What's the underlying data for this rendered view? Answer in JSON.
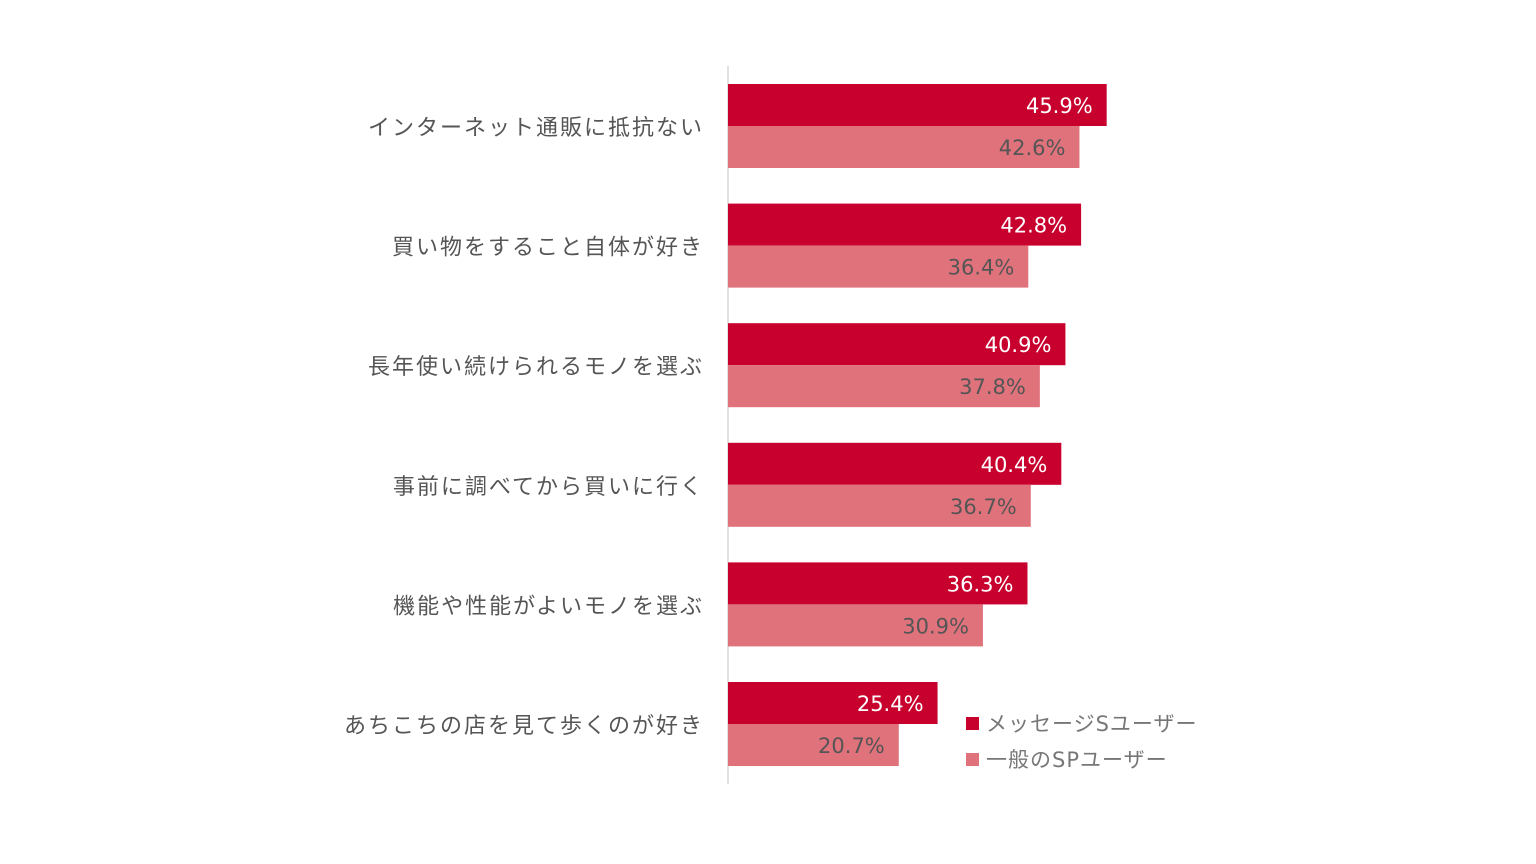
{
  "chart_data": {
    "type": "bar",
    "orientation": "horizontal",
    "categories": [
      "インターネット通販に抵抗ない",
      "買い物をすること自体が好き",
      "長年使い続けられるモノを選ぶ",
      "事前に調べてから買いに行く",
      "機能や性能がよいモノを選ぶ",
      "あちこちの店を見て歩くのが好き"
    ],
    "series": [
      {
        "name": "メッセージSユーザー",
        "color": "#c8002d",
        "label_color": "#ffffff",
        "values": [
          45.9,
          42.8,
          40.9,
          40.4,
          36.3,
          25.4
        ],
        "labels": [
          "45.9%",
          "42.8%",
          "40.9%",
          "40.4%",
          "36.3%",
          "25.4%"
        ]
      },
      {
        "name": "一般のSPユーザー",
        "color": "#e0727c",
        "label_color": "#555555",
        "values": [
          42.6,
          36.4,
          37.8,
          36.7,
          30.9,
          20.7
        ],
        "labels": [
          "42.6%",
          "36.4%",
          "37.8%",
          "36.7%",
          "30.9%",
          "20.7%"
        ]
      }
    ],
    "xlim": [
      0,
      100
    ],
    "grid": false,
    "legend_position": "bottom-right"
  }
}
